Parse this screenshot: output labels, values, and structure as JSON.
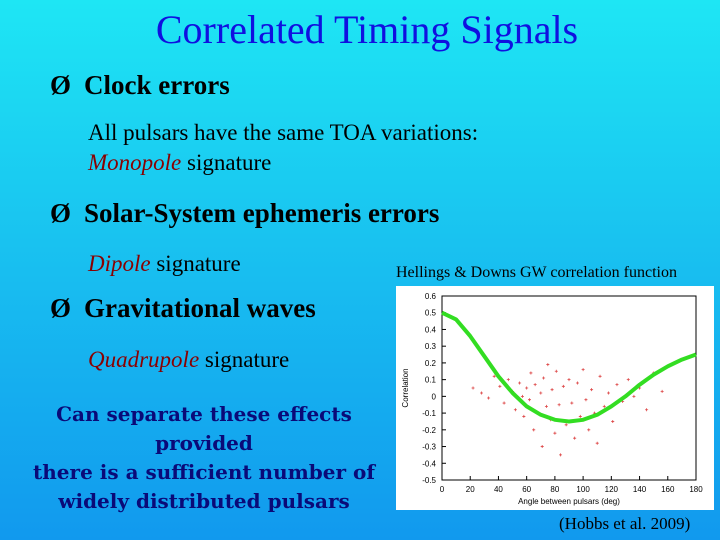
{
  "slide": {
    "title": "Correlated Timing Signals",
    "bullet_glyph": "Ø",
    "bullets": [
      {
        "heading": "Clock errors",
        "line1": "All pulsars have the same TOA variations:",
        "em": "Monopole",
        "rest": " signature"
      },
      {
        "heading": "Solar-System ephemeris errors",
        "em": "Dipole",
        "rest": " signature"
      },
      {
        "heading": "Gravitational waves",
        "em": "Quadrupole",
        "rest": " signature"
      }
    ],
    "callout": {
      "line1": "Can separate these effects provided",
      "line2": "there is a sufficient number of",
      "line3": "widely distributed pulsars"
    },
    "plot_title": "Hellings & Downs GW correlation function",
    "citation": "(Hobbs et al. 2009)",
    "colors": {
      "title": "#1010e0",
      "emphasis": "#8a0000",
      "callout": "#0a0a78",
      "curve": "#33dd22",
      "points": "#dd4444"
    }
  },
  "chart_data": {
    "type": "scatter",
    "xlabel": "Angle between pulsars (deg)",
    "ylabel": "Correlation",
    "xlim": [
      0,
      180
    ],
    "ylim": [
      -0.5,
      0.6
    ],
    "x_ticks": [
      "0",
      "20",
      "40",
      "60",
      "80",
      "100",
      "120",
      "140",
      "160",
      "180"
    ],
    "y_ticks": [
      "0.6",
      "0.5",
      "0.4",
      "0.3",
      "0.2",
      "0.1",
      "0",
      "-0.1",
      "-0.2",
      "-0.3",
      "-0.4",
      "-0.5"
    ],
    "curve": {
      "x": [
        0,
        10,
        20,
        30,
        40,
        50,
        60,
        70,
        80,
        90,
        100,
        110,
        120,
        130,
        140,
        150,
        160,
        170,
        180
      ],
      "y": [
        0.5,
        0.46,
        0.36,
        0.24,
        0.12,
        0.02,
        -0.06,
        -0.11,
        -0.14,
        -0.15,
        -0.14,
        -0.11,
        -0.06,
        0.0,
        0.07,
        0.13,
        0.18,
        0.22,
        0.25
      ]
    },
    "points": {
      "x": [
        22,
        28,
        33,
        37,
        41,
        44,
        47,
        50,
        52,
        55,
        57,
        58,
        60,
        62,
        63,
        65,
        66,
        68,
        70,
        71,
        72,
        74,
        75,
        77,
        78,
        80,
        81,
        83,
        84,
        86,
        88,
        90,
        92,
        94,
        96,
        98,
        100,
        102,
        104,
        106,
        108,
        110,
        112,
        115,
        118,
        121,
        124,
        128,
        132,
        136,
        140,
        145,
        150,
        156
      ],
      "y": [
        0.05,
        0.02,
        -0.01,
        0.12,
        0.06,
        -0.04,
        0.1,
        0.03,
        -0.08,
        0.08,
        0.0,
        -0.12,
        0.05,
        -0.02,
        0.14,
        -0.2,
        0.07,
        -0.1,
        0.02,
        -0.3,
        0.11,
        -0.06,
        0.19,
        -0.14,
        0.04,
        -0.22,
        0.15,
        -0.05,
        -0.35,
        0.06,
        -0.17,
        0.1,
        -0.04,
        -0.25,
        0.08,
        -0.12,
        0.16,
        -0.02,
        -0.2,
        0.04,
        -0.1,
        -0.28,
        0.12,
        -0.06,
        0.02,
        -0.15,
        0.07,
        -0.03,
        0.1,
        0.0,
        0.05,
        -0.08,
        0.14,
        0.03
      ]
    }
  }
}
